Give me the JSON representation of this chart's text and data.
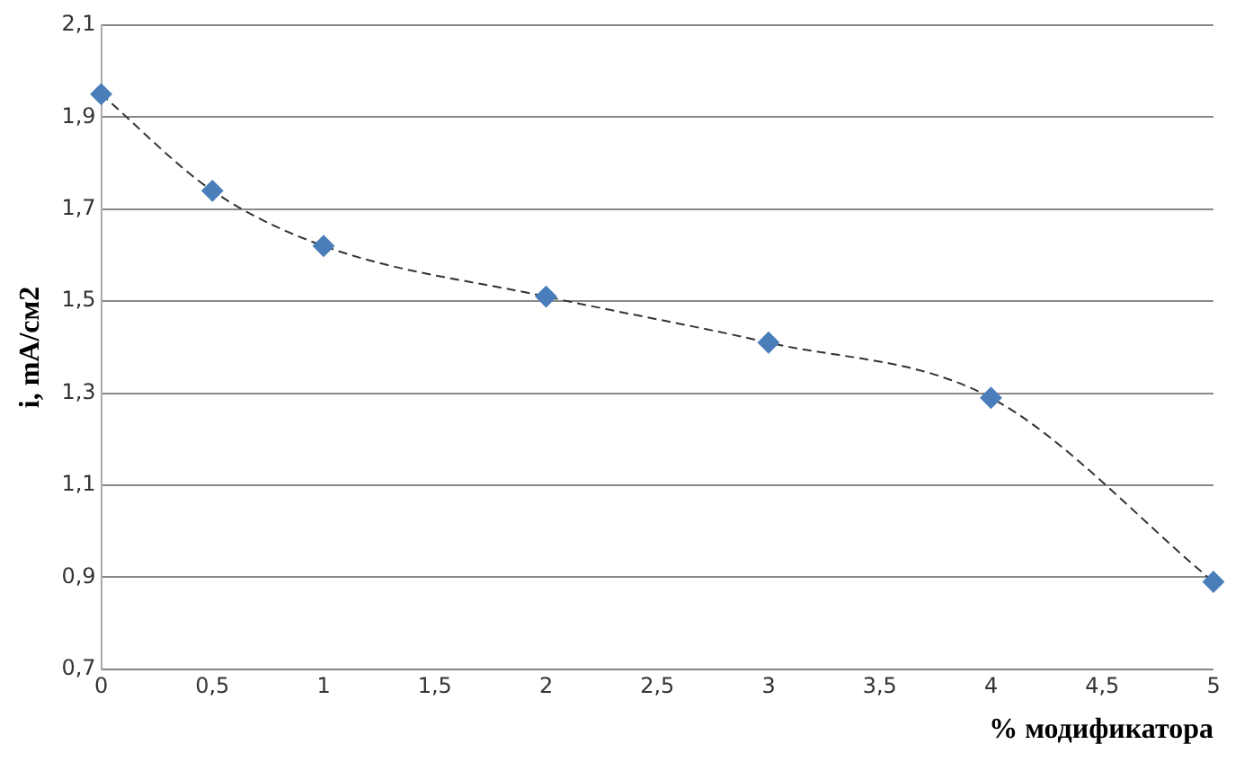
{
  "chart_data": {
    "type": "scatter",
    "xlabel": "% модификатора",
    "ylabel": "i, mA/см2",
    "xlim": [
      0,
      5
    ],
    "ylim": [
      0.7,
      2.1
    ],
    "xticks": [
      0,
      {
        "value": 0.5,
        "label": "0,5"
      },
      1,
      {
        "value": 1.5,
        "label": "1,5"
      },
      2,
      {
        "value": 2.5,
        "label": "2,5"
      },
      3,
      {
        "value": 3.5,
        "label": "3,5"
      },
      4,
      {
        "value": 4.5,
        "label": "4,5"
      },
      5
    ],
    "yticks": [
      {
        "value": 0.7,
        "label": "0,7"
      },
      {
        "value": 0.9,
        "label": "0,9"
      },
      {
        "value": 1.1,
        "label": "1,1"
      },
      {
        "value": 1.3,
        "label": "1,3"
      },
      {
        "value": 1.5,
        "label": "1,5"
      },
      {
        "value": 1.7,
        "label": "1,7"
      },
      {
        "value": 1.9,
        "label": "1,9"
      },
      {
        "value": 2.1,
        "label": "2,1"
      }
    ],
    "grid": "y",
    "legend": false,
    "series": [
      {
        "type": "line",
        "color": "#333333",
        "x": [
          0,
          0.5,
          1,
          2,
          3,
          4,
          5
        ],
        "values": [
          1.95,
          1.74,
          1.62,
          1.51,
          1.41,
          1.29,
          0.89
        ],
        "marker": "none",
        "line_style": "dashed"
      },
      {
        "color": "#4a7ebb",
        "x": [
          0,
          0.5,
          1,
          2,
          3,
          4,
          5
        ],
        "values": [
          1.95,
          1.74,
          1.62,
          1.51,
          1.41,
          1.29,
          0.89
        ],
        "marker": "diamond"
      }
    ]
  }
}
